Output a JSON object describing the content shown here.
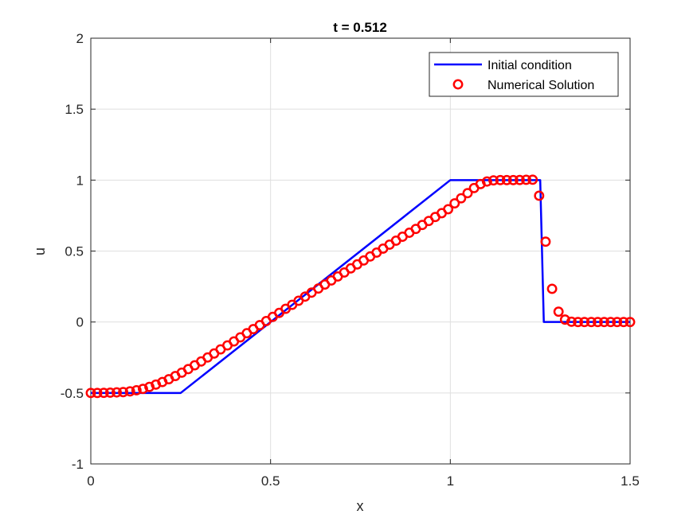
{
  "chart_data": {
    "type": "line",
    "title": "t = 0.512",
    "xlabel": "x",
    "ylabel": "u",
    "xlim": [
      0,
      1.5
    ],
    "ylim": [
      -1,
      2
    ],
    "xticks": [
      0,
      0.5,
      1,
      1.5
    ],
    "xtick_labels": [
      "0",
      "0.5",
      "1",
      "1.5"
    ],
    "yticks": [
      -1,
      -0.5,
      0,
      0.5,
      1,
      1.5,
      2
    ],
    "ytick_labels": [
      "-1",
      "-0.5",
      "0",
      "0.5",
      "1",
      "1.5",
      "2"
    ],
    "grid": true,
    "legend_position": "top-right",
    "series": [
      {
        "name": "Initial condition",
        "kind": "line",
        "color": "#0000ff",
        "points": [
          [
            0,
            -0.5
          ],
          [
            0.25,
            -0.5
          ],
          [
            1.0,
            1.0
          ],
          [
            1.25,
            1.0
          ],
          [
            1.26,
            0.0
          ],
          [
            1.5,
            0.0
          ]
        ]
      },
      {
        "name": "Numerical Solution",
        "kind": "markers",
        "marker": "circle",
        "color": "#ff0000",
        "points": [
          [
            0.0,
            -0.5
          ],
          [
            0.018,
            -0.5
          ],
          [
            0.036,
            -0.499
          ],
          [
            0.054,
            -0.498
          ],
          [
            0.072,
            -0.496
          ],
          [
            0.09,
            -0.494
          ],
          [
            0.109,
            -0.489
          ],
          [
            0.127,
            -0.481
          ],
          [
            0.145,
            -0.471
          ],
          [
            0.163,
            -0.457
          ],
          [
            0.181,
            -0.441
          ],
          [
            0.199,
            -0.423
          ],
          [
            0.217,
            -0.403
          ],
          [
            0.235,
            -0.381
          ],
          [
            0.253,
            -0.357
          ],
          [
            0.271,
            -0.332
          ],
          [
            0.289,
            -0.305
          ],
          [
            0.307,
            -0.278
          ],
          [
            0.325,
            -0.25
          ],
          [
            0.343,
            -0.222
          ],
          [
            0.361,
            -0.193
          ],
          [
            0.38,
            -0.165
          ],
          [
            0.398,
            -0.137
          ],
          [
            0.416,
            -0.108
          ],
          [
            0.434,
            -0.079
          ],
          [
            0.452,
            -0.05
          ],
          [
            0.47,
            -0.022
          ],
          [
            0.488,
            0.007
          ],
          [
            0.506,
            0.036
          ],
          [
            0.524,
            0.064
          ],
          [
            0.542,
            0.093
          ],
          [
            0.56,
            0.121
          ],
          [
            0.578,
            0.15
          ],
          [
            0.596,
            0.179
          ],
          [
            0.614,
            0.207
          ],
          [
            0.633,
            0.236
          ],
          [
            0.651,
            0.264
          ],
          [
            0.669,
            0.293
          ],
          [
            0.687,
            0.321
          ],
          [
            0.705,
            0.349
          ],
          [
            0.723,
            0.378
          ],
          [
            0.741,
            0.406
          ],
          [
            0.759,
            0.434
          ],
          [
            0.777,
            0.462
          ],
          [
            0.795,
            0.489
          ],
          [
            0.813,
            0.517
          ],
          [
            0.831,
            0.545
          ],
          [
            0.849,
            0.573
          ],
          [
            0.867,
            0.601
          ],
          [
            0.886,
            0.629
          ],
          [
            0.904,
            0.656
          ],
          [
            0.922,
            0.684
          ],
          [
            0.94,
            0.712
          ],
          [
            0.958,
            0.74
          ],
          [
            0.976,
            0.767
          ],
          [
            0.994,
            0.795
          ],
          [
            1.012,
            0.836
          ],
          [
            1.03,
            0.872
          ],
          [
            1.048,
            0.908
          ],
          [
            1.066,
            0.944
          ],
          [
            1.084,
            0.972
          ],
          [
            1.102,
            0.99
          ],
          [
            1.12,
            0.998
          ],
          [
            1.139,
            1.0
          ],
          [
            1.157,
            1.0
          ],
          [
            1.175,
            1.0
          ],
          [
            1.193,
            1.001
          ],
          [
            1.211,
            1.002
          ],
          [
            1.229,
            1.003
          ],
          [
            1.247,
            0.89
          ],
          [
            1.265,
            0.566
          ],
          [
            1.283,
            0.234
          ],
          [
            1.301,
            0.073
          ],
          [
            1.319,
            0.017
          ],
          [
            1.337,
            0.002
          ],
          [
            1.355,
            0.0
          ],
          [
            1.373,
            0.0
          ],
          [
            1.392,
            0.0
          ],
          [
            1.41,
            0.0
          ],
          [
            1.428,
            0.0
          ],
          [
            1.446,
            0.0
          ],
          [
            1.464,
            0.0
          ],
          [
            1.482,
            0.0
          ],
          [
            1.5,
            0.0
          ]
        ]
      }
    ]
  }
}
